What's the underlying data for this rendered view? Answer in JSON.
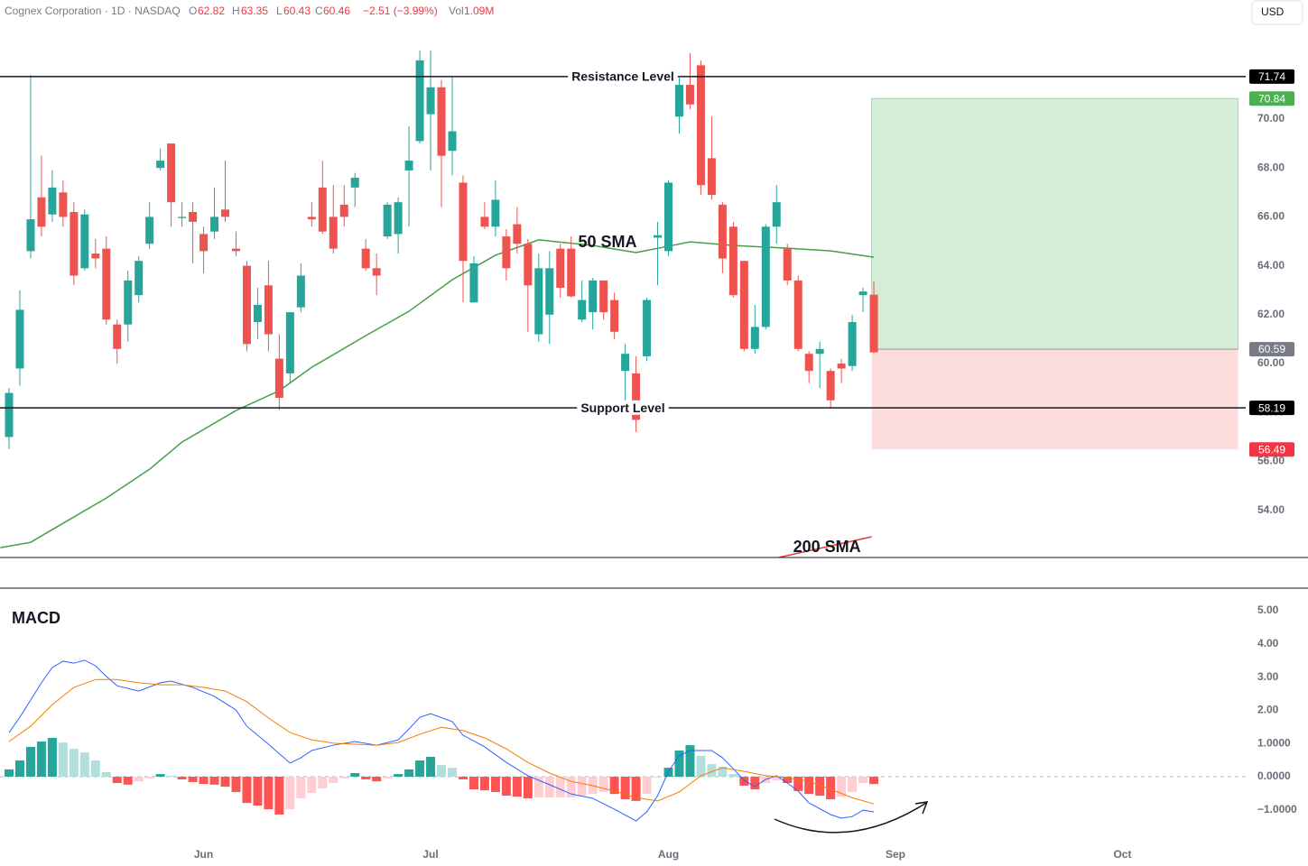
{
  "header": {
    "title": "Cognex Corporation · 1D · NASDAQ",
    "ohlc": [
      {
        "key": "O",
        "value": "62.82"
      },
      {
        "key": "H",
        "value": "63.35"
      },
      {
        "key": "L",
        "value": "60.43"
      },
      {
        "key": "C",
        "value": "60.46"
      }
    ],
    "change": "−2.51 (−3.99%)",
    "volume_key": "Vol",
    "volume": "1.09M",
    "currency": "USD"
  },
  "chart_data": [
    {
      "type": "candlestick",
      "up_color": "#26a69a",
      "down_color": "#ef5350",
      "grid": false,
      "xlim": [
        -0.835,
        114.4
      ],
      "ylim": [
        52.07,
        74.87
      ],
      "yticks": [
        {
          "value": 54,
          "label": "54.00"
        },
        {
          "value": 56,
          "label": "56.00"
        },
        {
          "value": 58,
          "label": "58.00"
        },
        {
          "value": 60,
          "label": "60.00"
        },
        {
          "value": 62,
          "label": "62.00"
        },
        {
          "value": 64,
          "label": "64.00"
        },
        {
          "value": 66,
          "label": "66.00"
        },
        {
          "value": 68,
          "label": "68.00"
        },
        {
          "value": 70,
          "label": "70.00"
        }
      ],
      "x": [
        0,
        1,
        2,
        3,
        4,
        5,
        6,
        7,
        8,
        9,
        10,
        11,
        12,
        13,
        14,
        15,
        16,
        17,
        18,
        19,
        20,
        21,
        22,
        23,
        24,
        25,
        26,
        27,
        28,
        29,
        30,
        31,
        32,
        33,
        34,
        35,
        36,
        37,
        38,
        39,
        40,
        41,
        42,
        43,
        44,
        45,
        46,
        47,
        48,
        49,
        50,
        51,
        52,
        53,
        54,
        55,
        56,
        57,
        58,
        59,
        60,
        61,
        62,
        63,
        64,
        65,
        66,
        67,
        68,
        69,
        70,
        71,
        72,
        73,
        74,
        75,
        76,
        77,
        78,
        79,
        80
      ],
      "ohlc": [
        [
          57.0,
          59.0,
          56.5,
          58.8
        ],
        [
          59.8,
          63.0,
          59.1,
          62.2
        ],
        [
          64.6,
          71.8,
          64.3,
          65.9
        ],
        [
          66.8,
          68.5,
          65.2,
          65.6
        ],
        [
          66.1,
          67.9,
          65.8,
          67.2
        ],
        [
          67.0,
          67.5,
          65.6,
          66.0
        ],
        [
          66.2,
          66.6,
          63.2,
          63.6
        ],
        [
          63.9,
          66.3,
          63.8,
          66.1
        ],
        [
          64.5,
          65.1,
          63.9,
          64.3
        ],
        [
          64.7,
          65.2,
          61.6,
          61.8
        ],
        [
          61.6,
          61.8,
          60.0,
          60.6
        ],
        [
          61.6,
          63.8,
          60.9,
          63.4
        ],
        [
          62.8,
          64.4,
          62.5,
          64.2
        ],
        [
          64.9,
          66.6,
          64.7,
          66.0
        ],
        [
          68.0,
          68.8,
          67.9,
          68.3
        ],
        [
          69.0,
          69.0,
          65.6,
          66.6
        ],
        [
          65.95,
          66.6,
          65.6,
          66.0
        ],
        [
          66.2,
          66.6,
          64.1,
          65.8
        ],
        [
          65.3,
          65.6,
          63.7,
          64.6
        ],
        [
          65.4,
          67.2,
          65.1,
          66.0
        ],
        [
          66.3,
          68.3,
          65.8,
          66.0
        ],
        [
          64.7,
          65.4,
          64.4,
          64.6
        ],
        [
          64.0,
          64.2,
          60.5,
          60.8
        ],
        [
          61.7,
          63.1,
          61.0,
          62.4
        ],
        [
          63.2,
          64.2,
          60.5,
          61.2
        ],
        [
          60.2,
          61.2,
          58.1,
          58.6
        ],
        [
          59.6,
          62.1,
          59.2,
          62.1
        ],
        [
          62.3,
          64.1,
          62.1,
          63.6
        ],
        [
          66.0,
          66.6,
          65.6,
          65.9
        ],
        [
          67.2,
          68.3,
          65.3,
          65.4
        ],
        [
          66.0,
          67.3,
          64.5,
          64.7
        ],
        [
          66.5,
          67.3,
          65.6,
          66.0
        ],
        [
          67.2,
          67.8,
          66.4,
          67.6
        ],
        [
          64.7,
          65.1,
          63.8,
          63.9
        ],
        [
          63.9,
          64.5,
          62.8,
          63.6
        ],
        [
          65.2,
          66.6,
          65.1,
          66.5
        ],
        [
          65.3,
          66.8,
          64.5,
          66.6
        ],
        [
          67.9,
          69.7,
          65.6,
          68.3
        ],
        [
          69.1,
          72.8,
          69.0,
          72.4
        ],
        [
          70.2,
          72.8,
          67.9,
          71.3
        ],
        [
          71.3,
          71.6,
          66.4,
          68.5
        ],
        [
          68.7,
          71.7,
          67.7,
          69.5
        ],
        [
          67.4,
          67.7,
          62.5,
          64.2
        ],
        [
          62.5,
          64.4,
          62.5,
          64.1
        ],
        [
          66.0,
          66.6,
          65.5,
          65.6
        ],
        [
          65.6,
          67.5,
          65.2,
          66.7
        ],
        [
          65.2,
          65.5,
          63.4,
          63.9
        ],
        [
          65.7,
          66.4,
          64.5,
          64.9
        ],
        [
          64.9,
          65.1,
          61.3,
          63.2
        ],
        [
          61.2,
          64.5,
          60.9,
          63.9
        ],
        [
          62.0,
          64.6,
          60.8,
          63.9
        ],
        [
          64.7,
          64.9,
          62.7,
          63.1
        ],
        [
          64.7,
          65.2,
          62.7,
          62.75
        ],
        [
          61.8,
          63.4,
          61.7,
          62.6
        ],
        [
          62.1,
          63.5,
          61.4,
          63.4
        ],
        [
          63.4,
          63.4,
          61.8,
          62.1
        ],
        [
          62.6,
          62.9,
          61.0,
          61.3
        ],
        [
          59.7,
          60.8,
          57.9,
          60.4
        ],
        [
          59.6,
          60.3,
          57.2,
          57.7
        ],
        [
          60.3,
          62.7,
          60.1,
          62.6
        ],
        [
          65.15,
          65.8,
          63.2,
          65.25
        ],
        [
          64.6,
          67.5,
          64.4,
          67.4
        ],
        [
          70.1,
          71.7,
          69.4,
          71.4
        ],
        [
          71.4,
          72.7,
          70.4,
          70.6
        ],
        [
          72.2,
          72.4,
          66.9,
          67.3
        ],
        [
          68.4,
          70.1,
          66.7,
          66.9
        ],
        [
          66.5,
          66.6,
          63.7,
          64.3
        ],
        [
          65.6,
          65.8,
          62.7,
          62.8
        ],
        [
          64.2,
          64.2,
          60.5,
          60.6
        ],
        [
          60.6,
          62.4,
          60.4,
          61.5
        ],
        [
          61.5,
          65.7,
          61.4,
          65.6
        ],
        [
          65.6,
          67.3,
          64.9,
          66.6
        ],
        [
          64.7,
          64.9,
          63.2,
          63.4
        ],
        [
          63.4,
          63.6,
          60.5,
          60.6
        ],
        [
          60.4,
          60.5,
          59.2,
          59.7
        ],
        [
          60.4,
          60.9,
          59.0,
          60.6
        ],
        [
          59.7,
          59.8,
          58.2,
          58.5
        ],
        [
          60.0,
          60.2,
          59.2,
          59.8
        ],
        [
          59.9,
          62.0,
          59.7,
          61.7
        ],
        [
          62.8,
          63.1,
          62.1,
          62.95
        ],
        [
          62.82,
          63.35,
          60.43,
          60.46
        ]
      ],
      "moving_averages": [
        {
          "name": "50 SMA",
          "color": "#43a047",
          "x": [
            -0.8,
            2,
            5,
            9,
            13,
            16,
            21,
            25,
            28,
            33,
            37,
            41,
            45,
            49,
            54,
            58,
            61,
            63,
            67,
            72,
            76,
            80
          ],
          "values": [
            52.47,
            52.69,
            53.47,
            54.5,
            55.68,
            56.79,
            58.08,
            58.89,
            59.85,
            61.14,
            62.14,
            63.43,
            64.43,
            65.06,
            64.83,
            64.54,
            64.8,
            64.98,
            64.83,
            64.72,
            64.61,
            64.35
          ]
        },
        {
          "name": "200 SMA",
          "color": "#e53935",
          "x": [
            71.2,
            79.8
          ],
          "values": [
            52.07,
            52.92
          ]
        }
      ],
      "levels": [
        {
          "label": "Resistance Level",
          "value": 71.74
        },
        {
          "label": "Support Level",
          "value": 58.19
        }
      ],
      "position": {
        "x": [
          79.8,
          113.7
        ],
        "target": 70.84,
        "entry": 60.59,
        "stop": 56.49,
        "profit_color": "#d4edd6",
        "loss_color": "#fcdcdc",
        "target_color": "#4caf50",
        "entry_color": "#787b86",
        "stop_color": "#f23645"
      }
    },
    {
      "type": "macd",
      "title": "MACD",
      "xlim": [
        -0.835,
        114.4
      ],
      "ylim": [
        -2.01,
        5.68
      ],
      "yticks": [
        {
          "value": 5,
          "label": "5.00"
        },
        {
          "value": 4,
          "label": "4.00"
        },
        {
          "value": 3,
          "label": "3.00"
        },
        {
          "value": 2,
          "label": "2.00"
        },
        {
          "value": 1,
          "label": "1.0000"
        },
        {
          "value": 0,
          "label": "0.0000"
        },
        {
          "value": -1,
          "label": "−1.0000"
        }
      ],
      "xticks": [
        {
          "value": 18,
          "label": "Jun"
        },
        {
          "value": 39,
          "label": "Jul"
        },
        {
          "value": 61,
          "label": "Aug"
        },
        {
          "value": 82,
          "label": "Sep"
        },
        {
          "value": 103,
          "label": "Oct"
        }
      ],
      "histogram": {
        "colors": [
          "#26a69a",
          "#b2dfdb",
          "#ff5252",
          "#ffcdd2"
        ],
        "values": [
          0.22,
          0.49,
          0.9,
          1.06,
          1.17,
          1.03,
          0.84,
          0.73,
          0.49,
          0.14,
          -0.19,
          -0.24,
          -0.14,
          -0.05,
          0.08,
          0.03,
          -0.08,
          -0.16,
          -0.22,
          -0.24,
          -0.3,
          -0.46,
          -0.79,
          -0.87,
          -0.98,
          -1.14,
          -0.98,
          -0.65,
          -0.49,
          -0.35,
          -0.19,
          -0.05,
          0.11,
          -0.08,
          -0.14,
          -0.05,
          0.08,
          0.22,
          0.49,
          0.6,
          0.35,
          0.27,
          -0.08,
          -0.38,
          -0.41,
          -0.46,
          -0.57,
          -0.6,
          -0.65,
          -0.62,
          -0.62,
          -0.62,
          -0.62,
          -0.57,
          -0.52,
          -0.46,
          -0.52,
          -0.68,
          -0.73,
          -0.52,
          -0.03,
          0.27,
          0.79,
          0.95,
          0.63,
          0.38,
          0.3,
          0.08,
          -0.27,
          -0.38,
          -0.19,
          -0.11,
          -0.19,
          -0.43,
          -0.52,
          -0.57,
          -0.68,
          -0.6,
          -0.46,
          -0.19,
          -0.22
        ]
      },
      "series": [
        {
          "color": "#2962ff",
          "x": [
            0,
            1,
            3,
            4,
            5,
            6,
            7,
            8,
            9,
            10,
            12,
            14,
            15,
            17,
            19,
            21,
            22,
            24,
            26,
            27,
            28,
            30,
            32,
            34,
            36,
            37,
            38,
            39,
            41,
            42,
            44,
            46,
            48,
            50,
            52,
            54,
            56,
            58,
            59,
            60,
            61,
            62,
            63,
            65,
            66,
            67,
            68,
            69,
            70,
            71,
            72,
            73,
            74,
            76,
            77,
            78,
            79,
            80
          ],
          "values": [
            1.33,
            1.79,
            2.83,
            3.29,
            3.48,
            3.42,
            3.51,
            3.34,
            3.02,
            2.74,
            2.58,
            2.83,
            2.88,
            2.69,
            2.42,
            2.01,
            1.52,
            0.98,
            0.41,
            0.57,
            0.79,
            0.95,
            1.06,
            0.95,
            1.11,
            1.44,
            1.79,
            1.9,
            1.66,
            1.25,
            0.9,
            0.43,
            0.03,
            -0.24,
            -0.52,
            -0.65,
            -0.98,
            -1.33,
            -1.06,
            -0.57,
            0.16,
            0.63,
            0.79,
            0.79,
            0.57,
            0.24,
            -0.11,
            -0.3,
            -0.08,
            0.03,
            -0.19,
            -0.43,
            -0.79,
            -1.14,
            -1.25,
            -1.2,
            -1.01,
            -1.06
          ]
        },
        {
          "color": "#f57c00",
          "x": [
            0,
            2,
            4,
            6,
            8,
            10,
            12,
            14,
            16,
            18,
            20,
            22,
            24,
            26,
            28,
            30,
            32,
            34,
            36,
            38,
            40,
            42,
            44,
            46,
            48,
            50,
            52,
            54,
            56,
            58,
            60,
            62,
            64,
            66,
            68,
            70,
            72,
            74,
            76,
            78,
            80
          ],
          "values": [
            1.06,
            1.52,
            2.17,
            2.69,
            2.93,
            2.93,
            2.83,
            2.77,
            2.77,
            2.69,
            2.58,
            2.26,
            1.77,
            1.33,
            1.11,
            1.01,
            0.98,
            0.95,
            1.03,
            1.28,
            1.49,
            1.39,
            1.17,
            0.84,
            0.43,
            0.11,
            -0.14,
            -0.27,
            -0.43,
            -0.63,
            -0.73,
            -0.46,
            0.03,
            0.27,
            0.16,
            0.03,
            -0.03,
            -0.14,
            -0.38,
            -0.63,
            -0.82
          ]
        }
      ]
    }
  ]
}
